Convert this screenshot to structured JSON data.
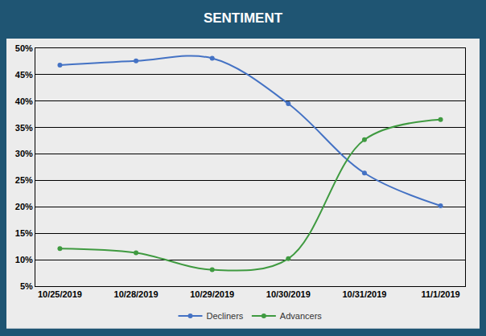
{
  "chart_data": {
    "type": "line",
    "title": "SENTIMENT",
    "categories": [
      "10/25/2019",
      "10/28/2019",
      "10/29/2019",
      "10/30/2019",
      "10/31/2019",
      "11/1/2019"
    ],
    "series": [
      {
        "name": "Decliners",
        "color": "#4472c4",
        "values": [
          46.8,
          47.6,
          48.1,
          39.5,
          26.4,
          20.2
        ]
      },
      {
        "name": "Advancers",
        "color": "#3f9a40",
        "values": [
          12.1,
          11.3,
          8.1,
          10.2,
          32.7,
          36.5
        ]
      }
    ],
    "ylim": [
      5,
      50
    ],
    "yticks": [
      {
        "value": 5,
        "label": "5%"
      },
      {
        "value": 10,
        "label": "10%"
      },
      {
        "value": 15,
        "label": "15%"
      },
      {
        "value": 20,
        "label": "20%"
      },
      {
        "value": 25,
        "label": "25%"
      },
      {
        "value": 30,
        "label": "30%"
      },
      {
        "value": 35,
        "label": "35%"
      },
      {
        "value": 40,
        "label": "40%"
      },
      {
        "value": 45,
        "label": "45%"
      },
      {
        "value": 50,
        "label": "50%"
      }
    ],
    "grid": true,
    "legend": "bottom",
    "marker": "circle",
    "line_style": "smooth"
  }
}
